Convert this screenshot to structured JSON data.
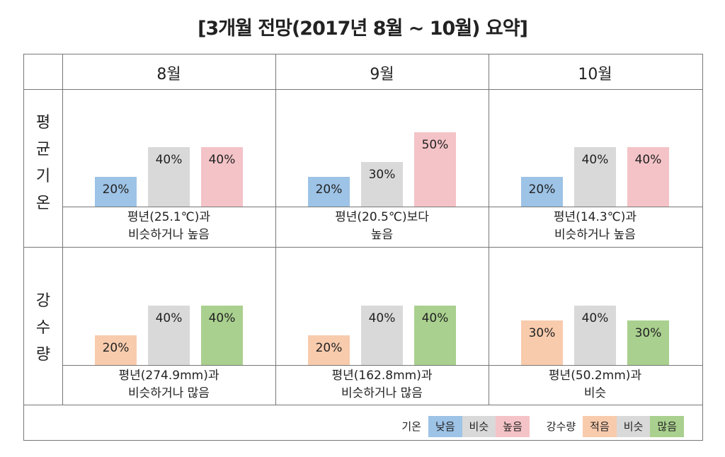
{
  "title": "[3개월 전망(2017년 8월 ~ 10월) 요약]",
  "months": [
    "8월",
    "9월",
    "10월"
  ],
  "rows": [
    {
      "label": [
        "평",
        "균",
        "기",
        "온"
      ]
    },
    {
      "label": [
        "강",
        "수",
        "량"
      ]
    }
  ],
  "colors": {
    "low_temp": "#9dc3e6",
    "similar": "#d9d9d9",
    "high_temp": "#f4c3c7",
    "low_precip": "#f8cbad",
    "high_precip": "#a9d08e"
  },
  "chart_data": [
    {
      "type": "bar",
      "row": "평균기온",
      "month": "8월",
      "categories": [
        "낮음",
        "비슷",
        "높음"
      ],
      "values": [
        20,
        40,
        40
      ],
      "labels": [
        "20%",
        "40%",
        "40%"
      ],
      "desc": [
        "평년(25.1℃)과",
        "비슷하거나 높음"
      ]
    },
    {
      "type": "bar",
      "row": "평균기온",
      "month": "9월",
      "categories": [
        "낮음",
        "비슷",
        "높음"
      ],
      "values": [
        20,
        30,
        50
      ],
      "labels": [
        "20%",
        "30%",
        "50%"
      ],
      "desc": [
        "평년(20.5℃)보다",
        "높음"
      ]
    },
    {
      "type": "bar",
      "row": "평균기온",
      "month": "10월",
      "categories": [
        "낮음",
        "비슷",
        "높음"
      ],
      "values": [
        20,
        40,
        40
      ],
      "labels": [
        "20%",
        "40%",
        "40%"
      ],
      "desc": [
        "평년(14.3℃)과",
        "비슷하거나 높음"
      ]
    },
    {
      "type": "bar",
      "row": "강수량",
      "month": "8월",
      "categories": [
        "적음",
        "비슷",
        "많음"
      ],
      "values": [
        20,
        40,
        40
      ],
      "labels": [
        "20%",
        "40%",
        "40%"
      ],
      "desc": [
        "평년(274.9mm)과",
        "비슷하거나 많음"
      ]
    },
    {
      "type": "bar",
      "row": "강수량",
      "month": "9월",
      "categories": [
        "적음",
        "비슷",
        "많음"
      ],
      "values": [
        20,
        40,
        40
      ],
      "labels": [
        "20%",
        "40%",
        "40%"
      ],
      "desc": [
        "평년(162.8mm)과",
        "비슷하거나 많음"
      ]
    },
    {
      "type": "bar",
      "row": "강수량",
      "month": "10월",
      "categories": [
        "적음",
        "비슷",
        "많음"
      ],
      "values": [
        30,
        40,
        30
      ],
      "labels": [
        "30%",
        "40%",
        "30%"
      ],
      "desc": [
        "평년(50.2mm)과",
        "비슷"
      ]
    }
  ],
  "legend": {
    "temp_title": "기온",
    "temp_items": [
      "낮음",
      "비슷",
      "높음"
    ],
    "precip_title": "강수량",
    "precip_items": [
      "적음",
      "비슷",
      "많음"
    ]
  }
}
